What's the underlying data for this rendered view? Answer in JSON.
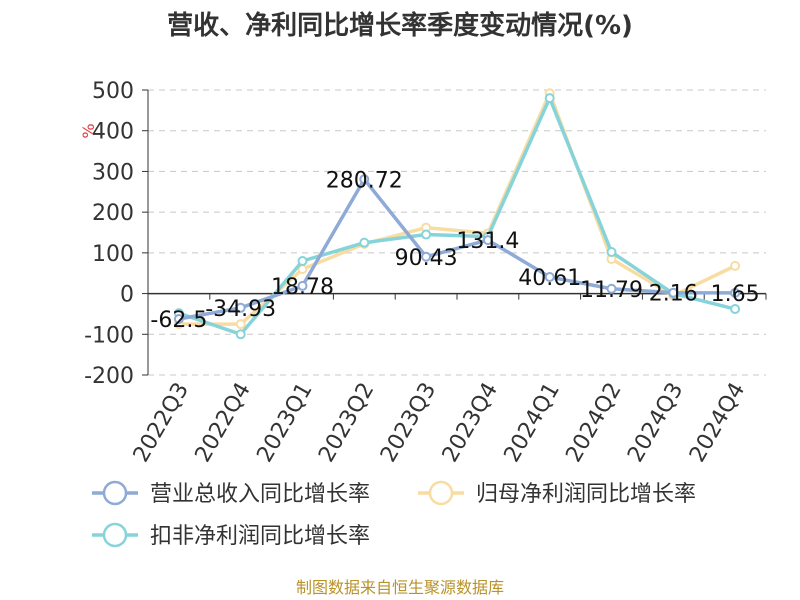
{
  "chart_data": {
    "type": "line",
    "title": "营收、净利同比增长率季度变动情况(%)",
    "ylabel": "%",
    "ylim": [
      -200,
      500
    ],
    "yticks": [
      500,
      400,
      300,
      200,
      100,
      0,
      -100,
      -200
    ],
    "grid": true,
    "legend_placement": "bottom",
    "categories": [
      "2022Q3",
      "2022Q4",
      "2023Q1",
      "2023Q2",
      "2023Q3",
      "2023Q4",
      "2024Q1",
      "2024Q2",
      "2024Q3",
      "2024Q4"
    ],
    "series": [
      {
        "name": "营业总收入同比增长率",
        "color": "#8eaad6",
        "values": [
          -62.5,
          -34.93,
          18.78,
          280.72,
          90.43,
          131.4,
          40.61,
          11.79,
          2.16,
          1.65
        ],
        "labels": [
          "-62.5",
          "-34.93",
          "18.78",
          "280.72",
          "90.43",
          "131.4",
          "40.61",
          "11.79",
          "2.16",
          "1.65"
        ]
      },
      {
        "name": "归母净利润同比增长率",
        "color": "#f9dca1",
        "values": [
          -75,
          -75,
          60,
          122,
          162,
          148,
          492,
          85,
          -5,
          68
        ]
      },
      {
        "name": "扣非净利润同比增长率",
        "color": "#86d4da",
        "values": [
          -48,
          -100,
          80,
          125,
          145,
          140,
          480,
          102,
          0,
          -38
        ]
      }
    ],
    "source": "制图数据来自恒生聚源数据库"
  }
}
